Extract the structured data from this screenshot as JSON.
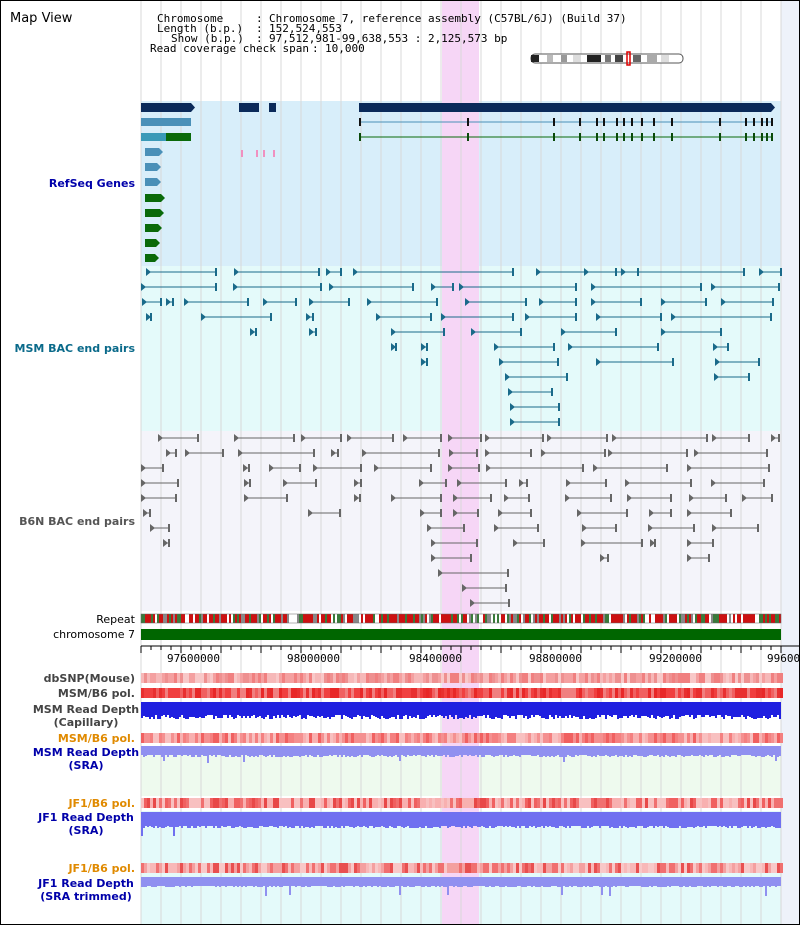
{
  "title": "Map View",
  "info": {
    "chromosome_key": "Chromosome",
    "chromosome_val": "Chromosome 7, reference assembly (C57BL/6J) (Build 37)",
    "length_key": "Length (b.p.)",
    "length_val": "152,524,553",
    "show_key": "Show (b.p.)",
    "show_val": "97,512,981-99,638,553 : 2,125,573 bp",
    "coverage_key": "Read coverage check span",
    "coverage_val": "10,000"
  },
  "tracks": {
    "refseq": "RefSeq Genes",
    "msm_bac": "MSM BAC end pairs",
    "b6n_bac": "B6N BAC end pairs",
    "repeat": "Repeat",
    "chromosome": "chromosome 7",
    "dbsnp": "dbSNP(Mouse)",
    "msm_b6_pol_1": "MSM/B6 pol.",
    "msm_depth_cap_1": "MSM Read Depth",
    "msm_depth_cap_2": "(Capillary)",
    "msm_b6_pol_2": "MSM/B6 pol.",
    "msm_depth_sra_1": "MSM Read Depth",
    "msm_depth_sra_2": "(SRA)",
    "jf1_b6_pol_1": "JF1/B6 pol.",
    "jf1_depth_sra_1": "JF1 Read Depth",
    "jf1_depth_sra_2": "(SRA)",
    "jf1_b6_pol_2": "JF1/B6 pol.",
    "jf1_depth_trim_1": "JF1 Read Depth",
    "jf1_depth_trim_2": "(SRA trimmed)"
  },
  "axis": {
    "ticks": [
      "97600000",
      "98000000",
      "98400000",
      "98800000",
      "99200000",
      "99600"
    ]
  },
  "colors": {
    "refseq_bg": "#d8eefa",
    "msm_bg": "#e4fafa",
    "b6n_bg": "#f4f4fa",
    "highlight": "#f6d6f6",
    "navy": "#0b2a5a",
    "gene_blue": "#4a90b8",
    "gene_green": "#0a6a0a",
    "teal_feature": "#1a6a8a",
    "gray_feature": "#666666",
    "chromosome_bar": "#006600",
    "label_orange": "#e08a00",
    "label_blue": "#0000aa"
  }
}
